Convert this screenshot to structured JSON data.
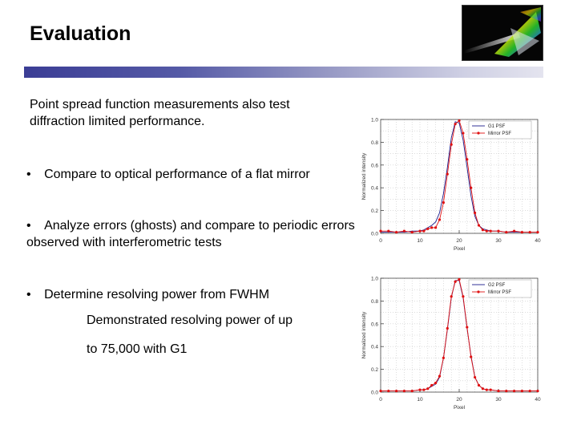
{
  "slide": {
    "title": "Evaluation",
    "intro": "Point spread function measurements also test diffraction limited performance.",
    "bullet_char": "•",
    "bullets": [
      "Compare to optical performance of a flat mirror",
      "Analyze errors (ghosts) and compare to periodic errors observed with interferometric tests",
      "Determine resolving power from FWHM"
    ],
    "sub_line1": "Demonstrated resolving power of up",
    "sub_line2": "to 75,000 with G1"
  },
  "logo": {
    "icon": "prism-rainbow-icon"
  },
  "colors": {
    "grating": "#1c1c8c",
    "mirror": "#e01010",
    "rule_dark": "#3b3d95"
  },
  "chart_data": [
    {
      "type": "line",
      "xlabel": "Pixel",
      "ylabel": "Normalized intensity",
      "xlim": [
        0,
        40
      ],
      "ylim": [
        0,
        1
      ],
      "xticks": [
        0,
        10,
        20,
        30,
        40
      ],
      "yticks": [
        0.0,
        0.2,
        0.4,
        0.6,
        0.8,
        1.0
      ],
      "ytick_labels": [
        "0.0",
        "0.2",
        "0.4",
        "0.6",
        "0.8",
        "1.0"
      ],
      "legend": "top-right",
      "series": [
        {
          "name": "G1 PSF",
          "color": "#1c1c8c",
          "marker": false,
          "x": [
            0,
            2,
            4,
            6,
            8,
            10,
            11,
            12,
            13,
            14,
            15,
            16,
            17,
            18,
            19,
            20,
            21,
            22,
            23,
            24,
            25,
            26,
            27,
            28,
            30,
            32,
            34,
            36,
            38,
            40
          ],
          "y": [
            0.01,
            0.01,
            0.01,
            0.01,
            0.02,
            0.02,
            0.03,
            0.05,
            0.07,
            0.1,
            0.18,
            0.35,
            0.58,
            0.84,
            0.98,
            0.97,
            0.82,
            0.58,
            0.33,
            0.15,
            0.07,
            0.04,
            0.03,
            0.02,
            0.02,
            0.01,
            0.01,
            0.01,
            0.01,
            0.01
          ]
        },
        {
          "name": "Mirror PSF",
          "color": "#e01010",
          "marker": true,
          "x": [
            0,
            2,
            4,
            6,
            8,
            10,
            11,
            12,
            13,
            14,
            15,
            16,
            17,
            18,
            19,
            20,
            21,
            22,
            23,
            24,
            25,
            26,
            27,
            28,
            30,
            32,
            34,
            36,
            38,
            40
          ],
          "y": [
            0.02,
            0.02,
            0.01,
            0.02,
            0.01,
            0.02,
            0.02,
            0.04,
            0.05,
            0.05,
            0.12,
            0.27,
            0.52,
            0.78,
            0.96,
            0.99,
            0.88,
            0.65,
            0.4,
            0.18,
            0.07,
            0.03,
            0.02,
            0.02,
            0.02,
            0.01,
            0.02,
            0.01,
            0.01,
            0.01
          ]
        }
      ]
    },
    {
      "type": "line",
      "xlabel": "Pixel",
      "ylabel": "Normalized intensity",
      "xlim": [
        0,
        40
      ],
      "ylim": [
        0,
        1
      ],
      "xticks": [
        0,
        10,
        20,
        30,
        40
      ],
      "yticks": [
        0.0,
        0.2,
        0.4,
        0.6,
        0.8,
        1.0
      ],
      "ytick_labels": [
        "0.0",
        "0.2",
        "0.4",
        "0.6",
        "0.8",
        "1.0"
      ],
      "legend": "top-right",
      "series": [
        {
          "name": "G2 PSF",
          "color": "#1c1c8c",
          "marker": false,
          "x": [
            0,
            2,
            4,
            6,
            8,
            10,
            11,
            12,
            13,
            14,
            15,
            16,
            17,
            18,
            19,
            20,
            21,
            22,
            23,
            24,
            25,
            26,
            27,
            28,
            30,
            32,
            34,
            36,
            38,
            40
          ],
          "y": [
            0.01,
            0.01,
            0.01,
            0.01,
            0.01,
            0.02,
            0.02,
            0.03,
            0.05,
            0.07,
            0.13,
            0.3,
            0.55,
            0.83,
            0.98,
            0.98,
            0.83,
            0.56,
            0.32,
            0.13,
            0.06,
            0.03,
            0.02,
            0.02,
            0.01,
            0.01,
            0.01,
            0.01,
            0.01,
            0.01
          ]
        },
        {
          "name": "Mirror PSF",
          "color": "#e01010",
          "marker": true,
          "x": [
            0,
            2,
            4,
            6,
            8,
            10,
            11,
            12,
            13,
            14,
            15,
            16,
            17,
            18,
            19,
            20,
            21,
            22,
            23,
            24,
            25,
            26,
            27,
            28,
            30,
            32,
            34,
            36,
            38,
            40
          ],
          "y": [
            0.01,
            0.01,
            0.01,
            0.01,
            0.01,
            0.02,
            0.02,
            0.03,
            0.06,
            0.08,
            0.14,
            0.3,
            0.56,
            0.84,
            0.97,
            0.99,
            0.84,
            0.57,
            0.31,
            0.13,
            0.06,
            0.03,
            0.02,
            0.02,
            0.01,
            0.01,
            0.01,
            0.01,
            0.01,
            0.01
          ]
        }
      ]
    }
  ]
}
